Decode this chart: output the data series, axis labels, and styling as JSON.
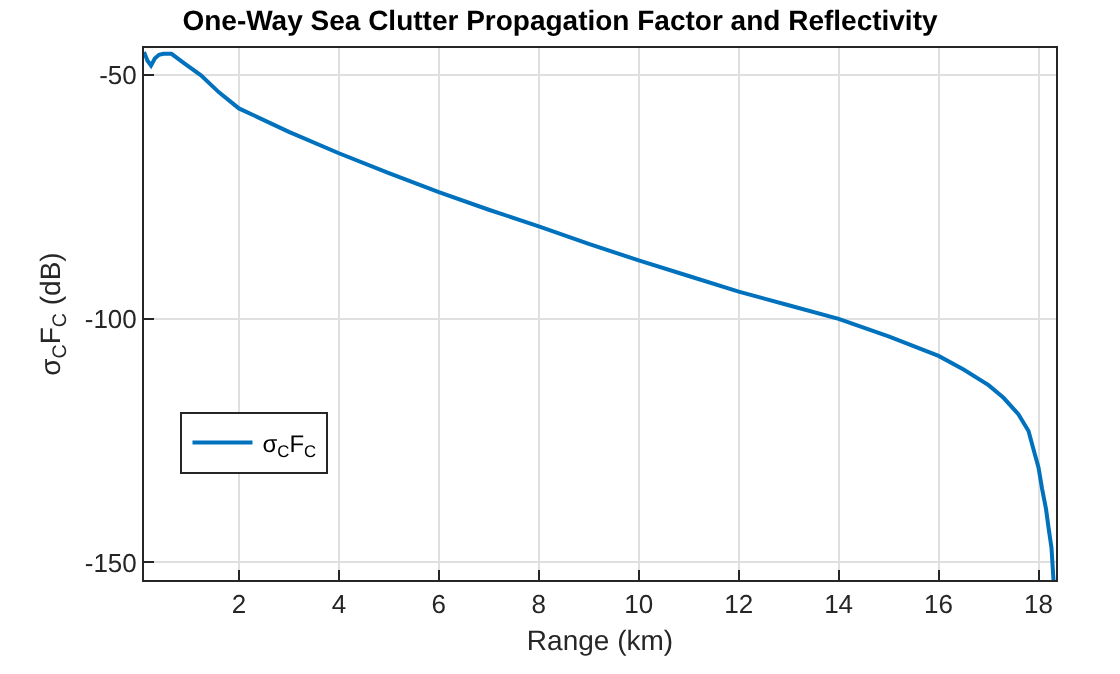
{
  "chart_data": {
    "type": "line",
    "title": "One-Way Sea Clutter Propagation Factor and Reflectivity",
    "xlabel": "Range (km)",
    "ylabel": "σ$_{C}$F$_{C}$ (dB)",
    "series": [
      {
        "name": "σ$_{C}$F$_{C}$",
        "color": "#0072bd",
        "x": [
          0.1,
          0.17,
          0.24,
          0.32,
          0.4,
          0.49,
          0.65,
          0.9,
          1.24,
          1.6,
          2,
          3,
          4,
          5,
          6,
          7,
          8,
          9,
          10,
          11,
          12,
          13,
          14,
          15,
          16,
          16.5,
          17,
          17.3,
          17.6,
          17.8,
          17.9,
          18.0,
          18.07,
          18.15,
          18.2,
          18.26,
          18.3
        ],
        "values": [
          -45.2,
          -47,
          -48,
          -46.5,
          -45.8,
          -45.6,
          -45.6,
          -47.5,
          -50,
          -53.5,
          -56.8,
          -61.6,
          -66,
          -70.1,
          -74,
          -77.6,
          -81,
          -84.6,
          -88,
          -91.2,
          -94.4,
          -97.2,
          -100,
          -103.6,
          -107.6,
          -110.4,
          -113.6,
          -116.2,
          -119.6,
          -123,
          -126.8,
          -130.5,
          -134.8,
          -139,
          -142.8,
          -147,
          -153.6
        ]
      }
    ],
    "xlim": [
      0.1,
      18.35
    ],
    "xticks": [
      2,
      4,
      6,
      8,
      10,
      12,
      14,
      16,
      18
    ],
    "ylim": [
      -153.6,
      -44.4
    ],
    "yticks": [
      -150,
      -100,
      -50
    ],
    "grid": true,
    "legend": "bottom left",
    "marker": "none",
    "line_style": "solid"
  }
}
